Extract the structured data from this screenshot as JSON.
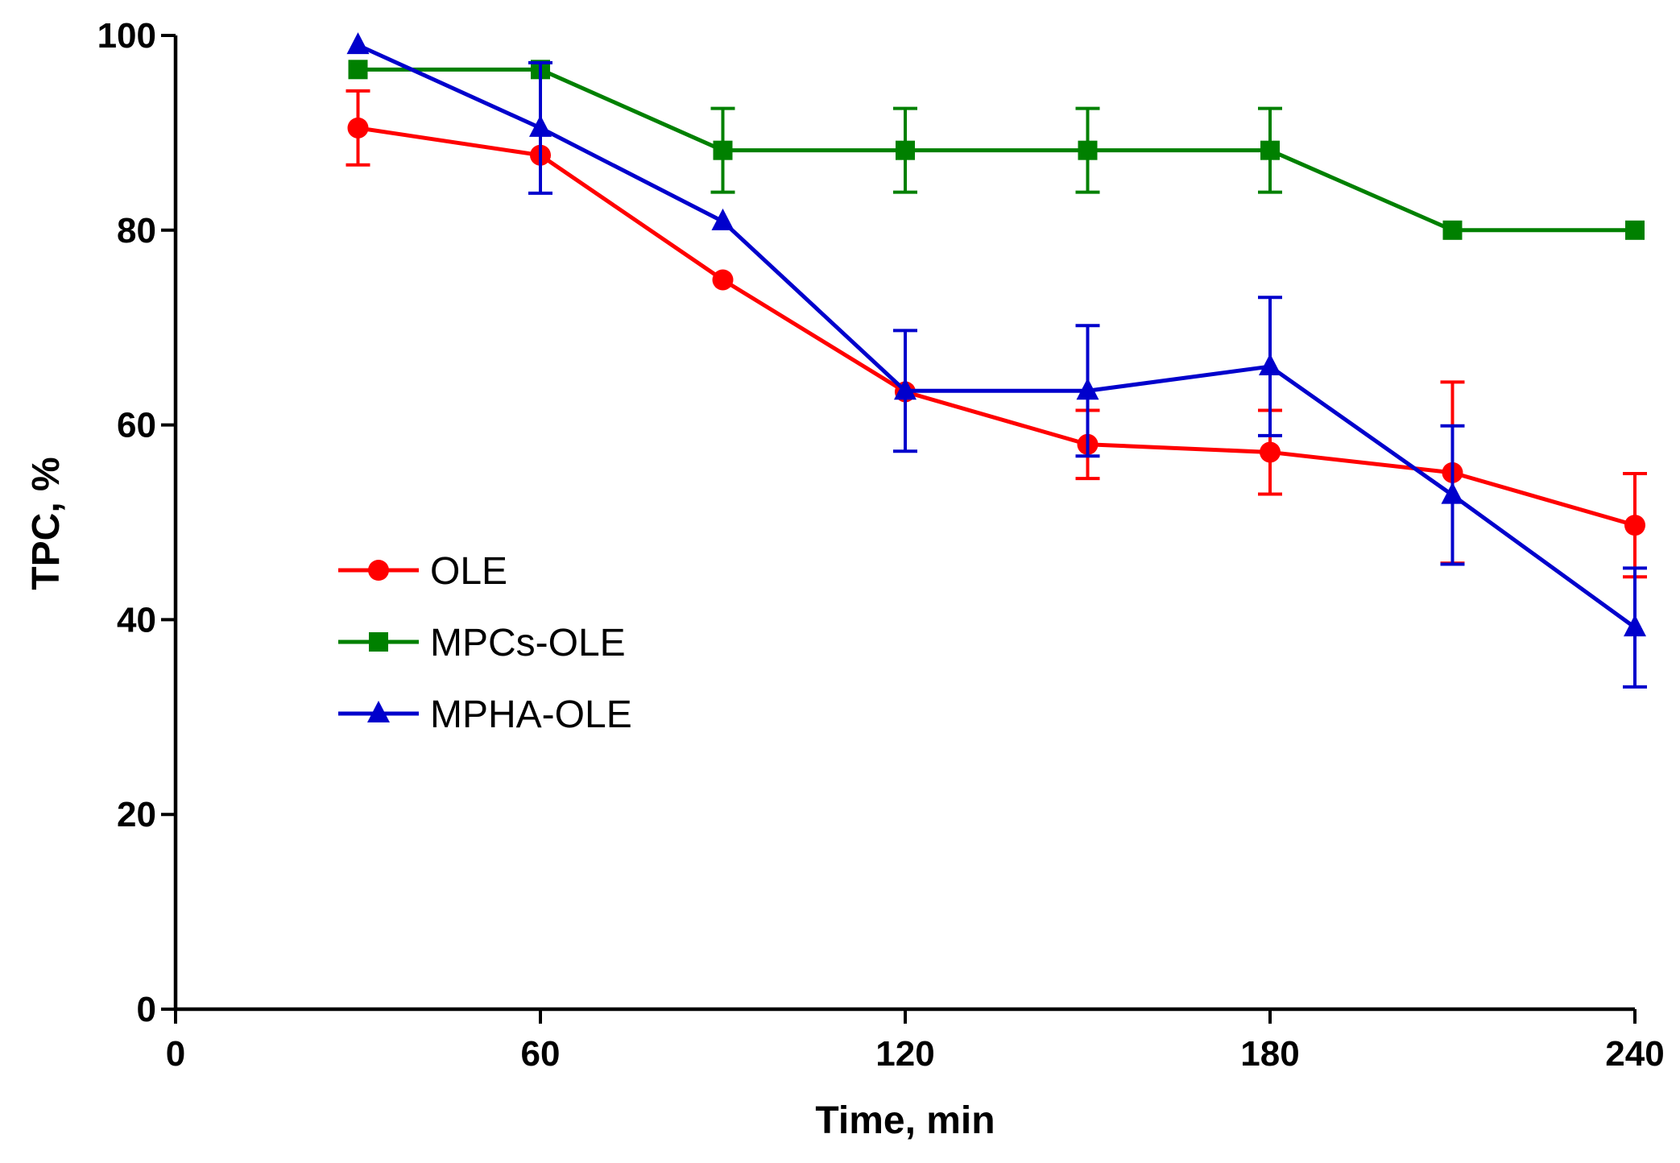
{
  "chart_data": {
    "type": "line",
    "title": "",
    "xlabel": "Time, min",
    "ylabel": "TPC, %",
    "xlim": [
      0,
      240
    ],
    "ylim": [
      0,
      100
    ],
    "xticks": [
      0,
      60,
      120,
      180,
      240
    ],
    "yticks": [
      0,
      20,
      40,
      60,
      80,
      100
    ],
    "grid": false,
    "legend_position": "center-left",
    "x": [
      30,
      60,
      90,
      120,
      150,
      180,
      210,
      240
    ],
    "series": [
      {
        "name": "OLE",
        "color": "#ff0000",
        "marker": "circle",
        "values": [
          90.5,
          87.7,
          74.9,
          63.4,
          58.0,
          57.2,
          55.1,
          49.7
        ],
        "error": [
          3.8,
          0.0,
          0.0,
          0.0,
          3.5,
          4.3,
          9.3,
          5.3
        ]
      },
      {
        "name": "MPCs-OLE",
        "color": "#008000",
        "marker": "square",
        "values": [
          96.5,
          96.5,
          88.2,
          88.2,
          88.2,
          88.2,
          80.0,
          80.0
        ],
        "error": [
          0.0,
          0.0,
          4.3,
          4.3,
          4.3,
          4.3,
          0.0,
          0.0
        ]
      },
      {
        "name": "MPHA-OLE",
        "color": "#0000cc",
        "marker": "triangle",
        "values": [
          99.0,
          90.5,
          80.9,
          63.5,
          63.5,
          66.0,
          52.8,
          39.2
        ],
        "error": [
          0.0,
          6.7,
          0.0,
          6.2,
          6.7,
          7.1,
          7.1,
          6.1
        ]
      }
    ]
  }
}
